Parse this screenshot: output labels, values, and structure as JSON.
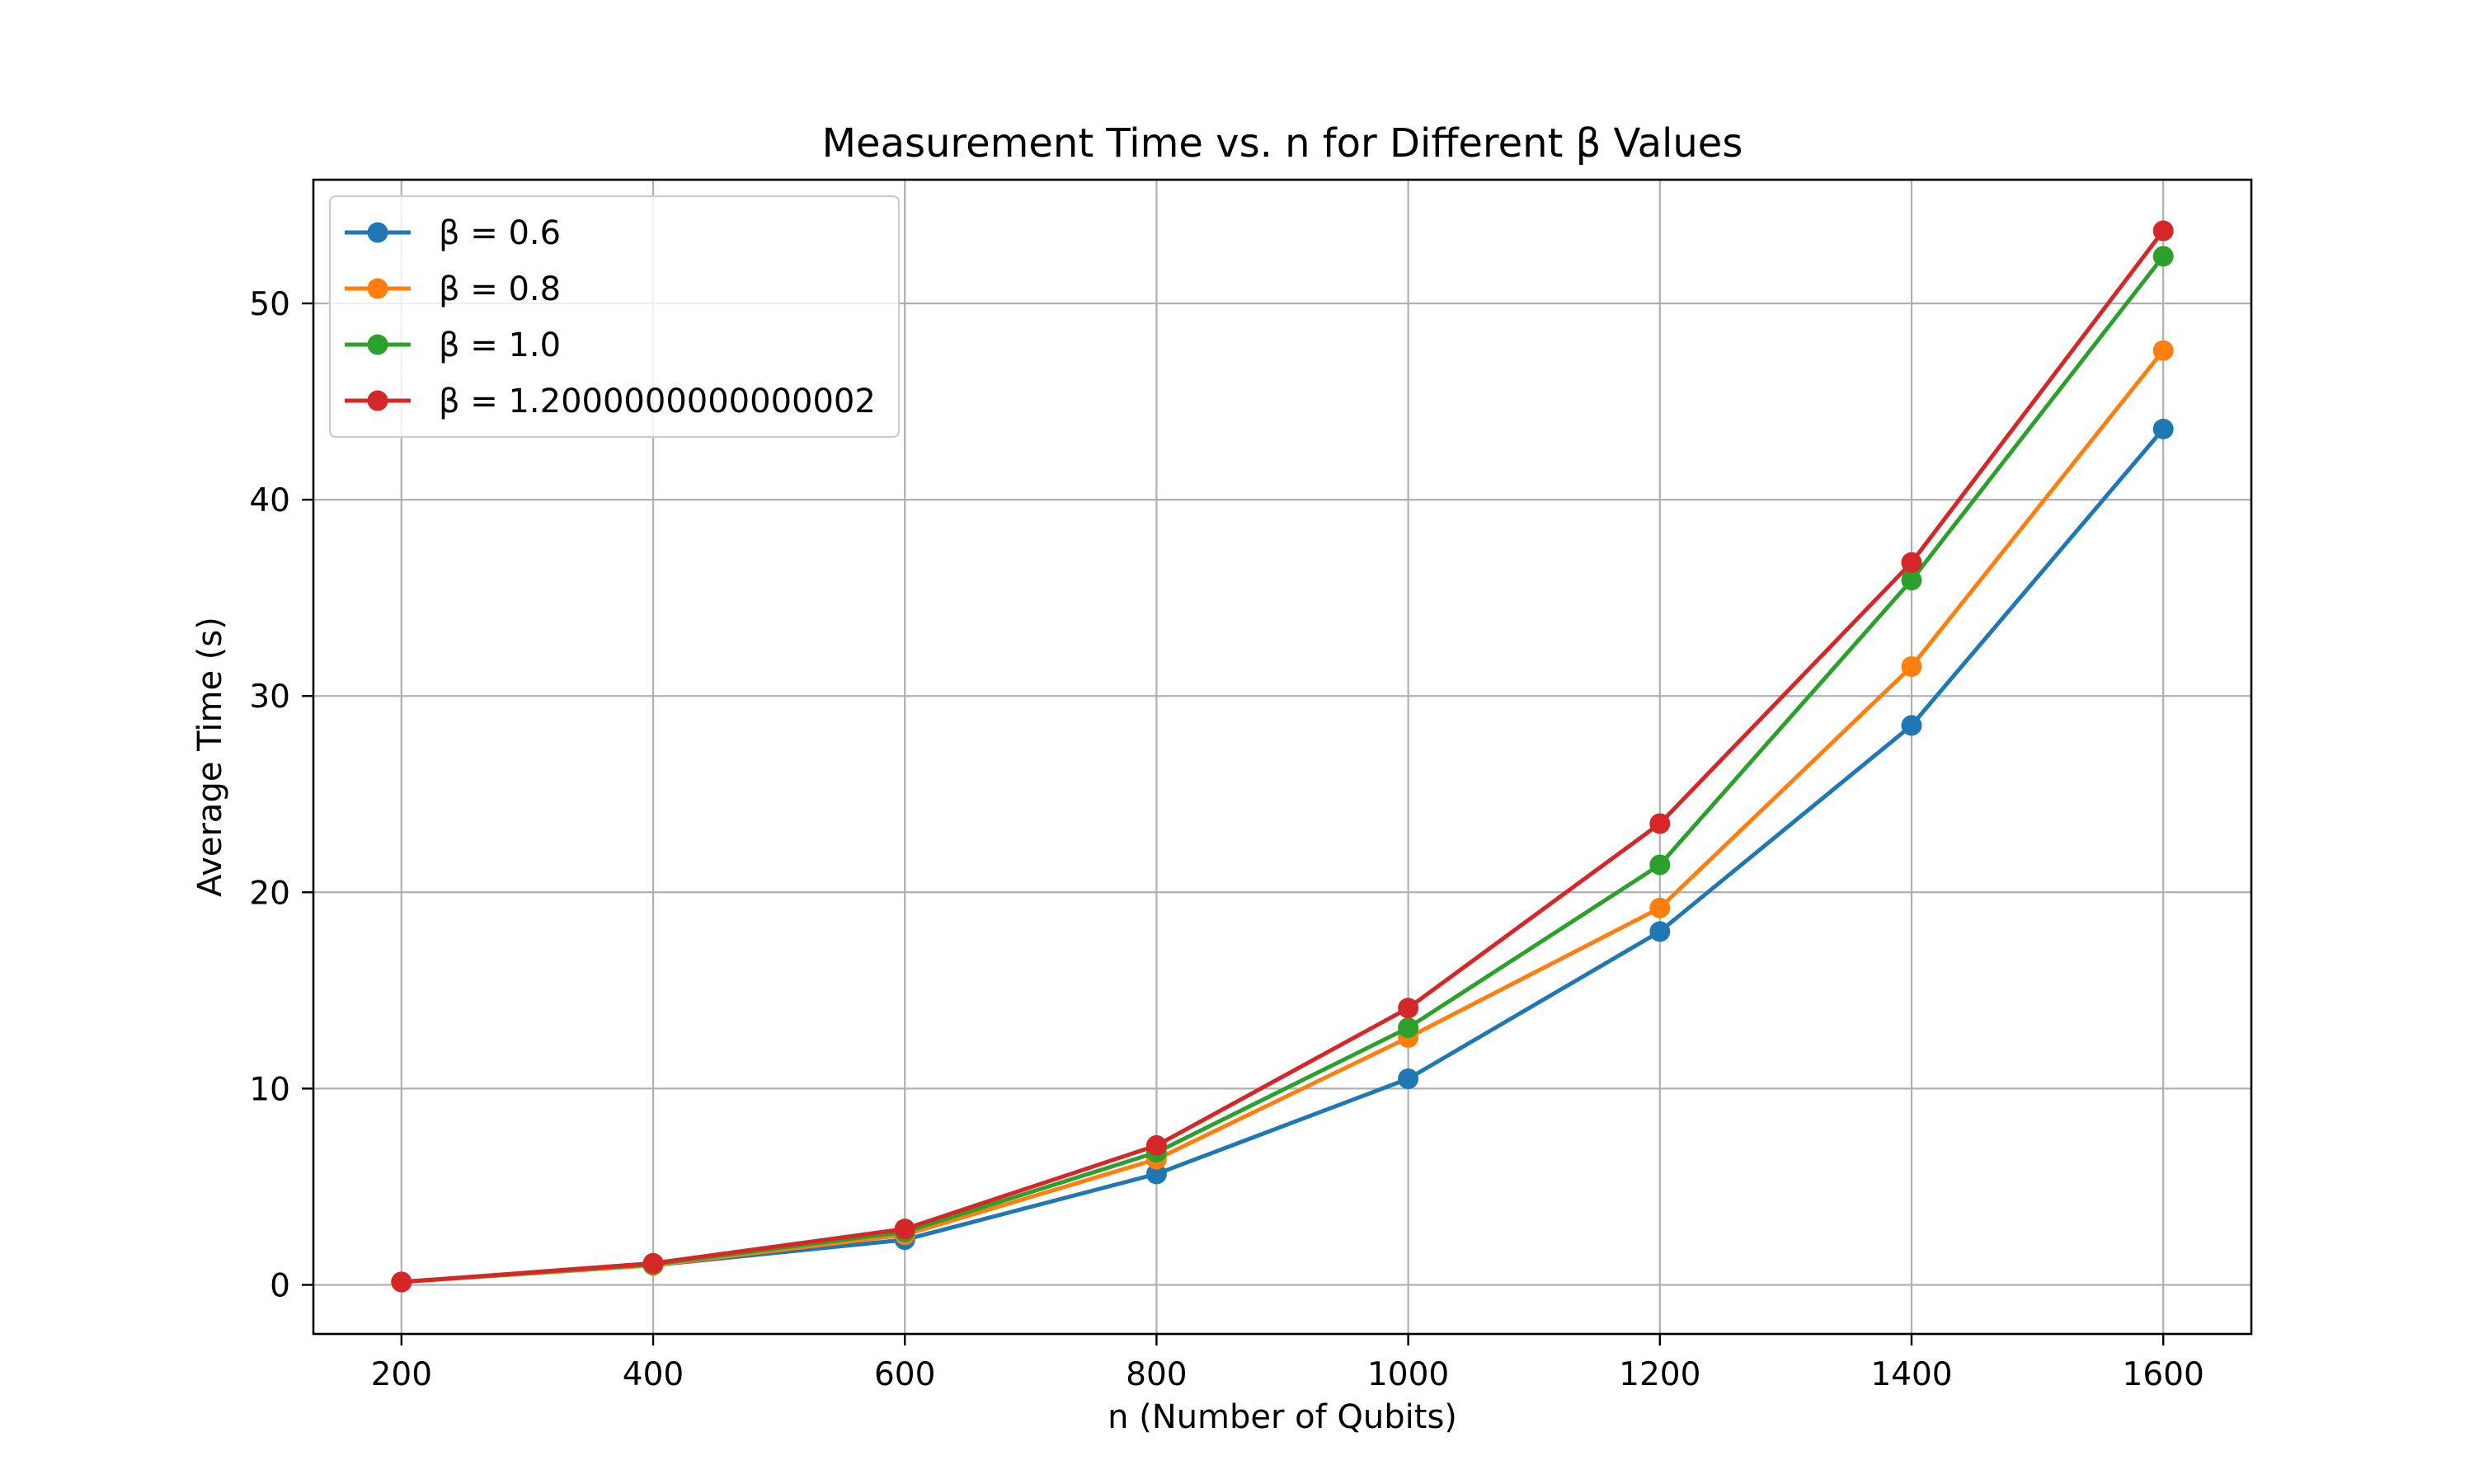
{
  "chart_data": {
    "type": "line",
    "title": "Measurement Time vs. n for Different β Values",
    "xlabel": "n (Number of Qubits)",
    "ylabel": "Average Time (s)",
    "x": [
      200,
      400,
      600,
      800,
      1000,
      1200,
      1400,
      1600
    ],
    "xlim": [
      130,
      1670
    ],
    "ylim": [
      -2.5,
      56.3
    ],
    "xticks": [
      200,
      400,
      600,
      800,
      1000,
      1200,
      1400,
      1600
    ],
    "yticks": [
      0,
      10,
      20,
      30,
      40,
      50
    ],
    "grid": true,
    "legend_position": "top-left",
    "series": [
      {
        "name": "β = 0.6",
        "color": "#1f77b4",
        "values": [
          0.15,
          1.0,
          2.3,
          5.65,
          10.5,
          18.0,
          28.5,
          43.6
        ]
      },
      {
        "name": "β = 0.8",
        "color": "#ff7f0e",
        "values": [
          0.15,
          1.0,
          2.55,
          6.4,
          12.6,
          19.2,
          31.5,
          47.6
        ]
      },
      {
        "name": "β = 1.0",
        "color": "#2ca02c",
        "values": [
          0.15,
          1.05,
          2.7,
          6.75,
          13.1,
          21.4,
          35.9,
          52.4
        ]
      },
      {
        "name": "β = 1.2000000000000002",
        "color": "#d62728",
        "values": [
          0.15,
          1.1,
          2.85,
          7.1,
          14.1,
          23.5,
          36.8,
          53.7
        ]
      }
    ]
  }
}
